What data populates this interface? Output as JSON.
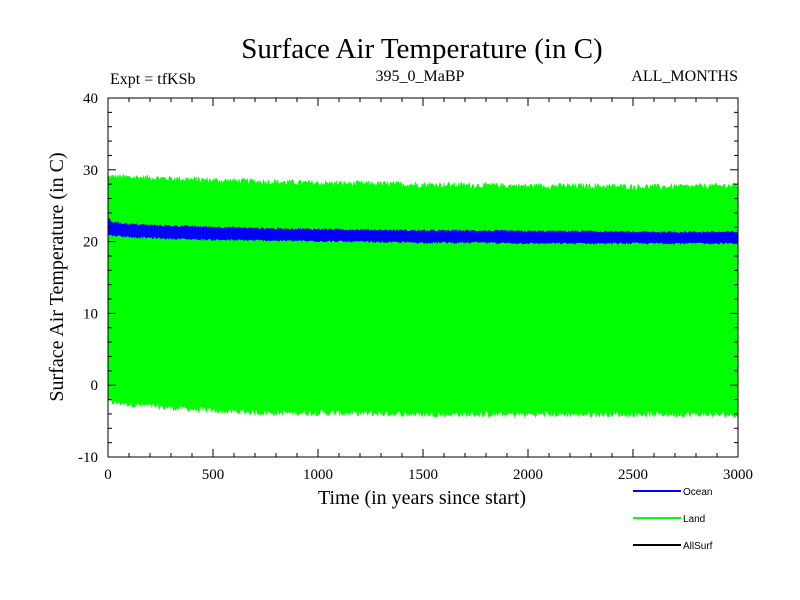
{
  "chart_data": {
    "type": "area",
    "title": "Surface Air Temperature (in C)",
    "subtitle_left": "Expt = tfKSb",
    "subtitle_center": "395_0_MaBP",
    "subtitle_right": "ALL_MONTHS",
    "xlabel": "Time (in years since start)",
    "ylabel": "Surface Air Temperature (in C)",
    "xlim": [
      0,
      3000
    ],
    "ylim": [
      -10,
      40
    ],
    "xticks": [
      0,
      500,
      1000,
      1500,
      2000,
      2500,
      3000
    ],
    "yticks": [
      -10,
      0,
      10,
      20,
      30,
      40
    ],
    "xtick_labels": [
      "0",
      "500",
      "1000",
      "1500",
      "2000",
      "2500",
      "3000"
    ],
    "ytick_labels": [
      "-10",
      "0",
      "10",
      "20",
      "30",
      "40"
    ],
    "grid": false,
    "legend_position": "bottom-right",
    "series": [
      {
        "name": "Land",
        "color": "#00ff00",
        "x": [
          0,
          250,
          500,
          750,
          1000,
          1250,
          1500,
          1750,
          2000,
          2250,
          2500,
          2750,
          3000
        ],
        "upper": [
          29.0,
          28.8,
          28.5,
          28.3,
          28.1,
          28.0,
          27.9,
          27.8,
          27.7,
          27.7,
          27.6,
          27.6,
          27.8
        ],
        "lower": [
          -2.3,
          -3.0,
          -3.5,
          -3.8,
          -3.8,
          -3.9,
          -4.0,
          -4.0,
          -4.0,
          -4.0,
          -4.0,
          -4.0,
          -4.1
        ]
      },
      {
        "name": "Ocean",
        "color": "#0000ff",
        "x": [
          0,
          20,
          100,
          250,
          500,
          750,
          1000,
          1250,
          1500,
          1750,
          2000,
          2250,
          2500,
          2750,
          3000
        ],
        "upper": [
          23.2,
          22.7,
          22.4,
          22.2,
          22.0,
          21.8,
          21.7,
          21.6,
          21.5,
          21.5,
          21.4,
          21.4,
          21.3,
          21.3,
          21.3
        ],
        "lower": [
          21.0,
          20.9,
          20.7,
          20.5,
          20.3,
          20.2,
          20.1,
          20.0,
          19.9,
          19.9,
          19.8,
          19.8,
          19.8,
          19.8,
          19.8
        ]
      },
      {
        "name": "AllSurf",
        "color": "#000000",
        "x": [],
        "upper": [],
        "lower": []
      }
    ]
  }
}
